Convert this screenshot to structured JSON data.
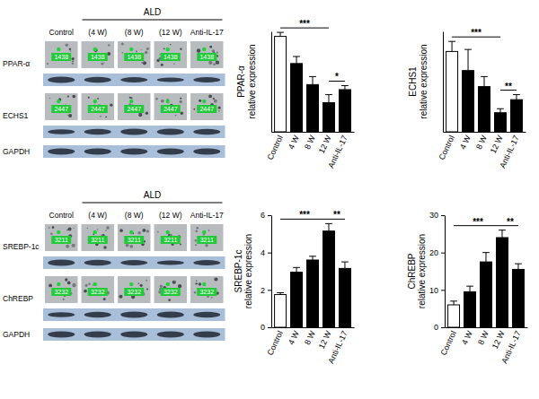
{
  "chart_data": [
    {
      "type": "bar",
      "y_label": "PPAR-α relative expression",
      "categories": [
        "Control",
        "4 W",
        "8 W",
        "12 W",
        "Anti-IL-17"
      ],
      "values": [
        0.95,
        0.68,
        0.47,
        0.29,
        0.42
      ],
      "errors": [
        0.04,
        0.07,
        0.08,
        0.08,
        0.04
      ],
      "colors": [
        "#ffffff",
        "#000000",
        "#000000",
        "#000000",
        "#000000"
      ],
      "ylim": [
        0,
        1
      ],
      "tick_labels": "x",
      "annotations": [
        {
          "text": "***",
          "from": "Control",
          "to": "12 W"
        },
        {
          "text": "*",
          "from": "12 W",
          "to": "Anti-IL-17"
        }
      ]
    },
    {
      "type": "bar",
      "y_label": "ECHS1 relative expression",
      "categories": [
        "Control",
        "4 W",
        "8 W",
        "12 W",
        "Anti-IL-17"
      ],
      "values": [
        0.8,
        0.61,
        0.45,
        0.19,
        0.32
      ],
      "errors": [
        0.1,
        0.21,
        0.1,
        0.04,
        0.05
      ],
      "colors": [
        "#ffffff",
        "#000000",
        "#000000",
        "#000000",
        "#000000"
      ],
      "ylim": [
        0,
        1
      ],
      "tick_labels": "x",
      "annotations": [
        {
          "text": "***",
          "from": "Control",
          "to": "12 W"
        },
        {
          "text": "**",
          "from": "12 W",
          "to": "Anti-IL-17"
        }
      ]
    },
    {
      "type": "bar",
      "y_label": "SREBP-1c relative expression",
      "categories": [
        "Control",
        "4 W",
        "8 W",
        "12 W",
        "Anti-IL-17"
      ],
      "values": [
        1.75,
        2.95,
        3.6,
        5.15,
        3.15
      ],
      "errors": [
        0.1,
        0.25,
        0.2,
        0.4,
        0.35
      ],
      "colors": [
        "#ffffff",
        "#000000",
        "#000000",
        "#000000",
        "#000000"
      ],
      "ylim": [
        0,
        6
      ],
      "yticks": [
        0,
        2,
        4,
        6
      ],
      "annotations": [
        {
          "text": "***",
          "from": "Control",
          "to": "12 W"
        },
        {
          "text": "**",
          "from": "12 W",
          "to": "Anti-IL-17"
        }
      ]
    },
    {
      "type": "bar",
      "y_label": "ChREBP relative expression",
      "categories": [
        "Control",
        "4 W",
        "8 W",
        "12 W",
        "Anti-IL-17"
      ],
      "values": [
        6,
        9.5,
        17.5,
        24,
        15.5
      ],
      "errors": [
        1,
        1.5,
        2.5,
        2,
        1.5
      ],
      "colors": [
        "#ffffff",
        "#000000",
        "#000000",
        "#000000",
        "#000000"
      ],
      "ylim": [
        0,
        30
      ],
      "yticks": [
        0,
        10,
        20,
        30
      ],
      "annotations": [
        {
          "text": "***",
          "from": "Control",
          "to": "12 W"
        },
        {
          "text": "**",
          "from": "12 W",
          "to": "Anti-IL-17"
        }
      ]
    }
  ],
  "blots": [
    {
      "header": "ALD",
      "columns": [
        "Control",
        "(4 W)",
        "(8 W)",
        "(12 W)",
        "Anti-IL-17"
      ],
      "rows": [
        {
          "label": "PPAR-α",
          "spot_id": "1438"
        },
        {
          "label": "ECHS1",
          "spot_id": "2447"
        }
      ],
      "loading_control": "GAPDH"
    },
    {
      "header": "ALD",
      "columns": [
        "Control",
        "(4 W)",
        "(8 W)",
        "(12 W)",
        "Anti-IL-17"
      ],
      "rows": [
        {
          "label": "SREBP-1c",
          "spot_id": "3211"
        },
        {
          "label": "ChREBP",
          "spot_id": "3232"
        }
      ],
      "loading_control": "GAPDH"
    }
  ]
}
